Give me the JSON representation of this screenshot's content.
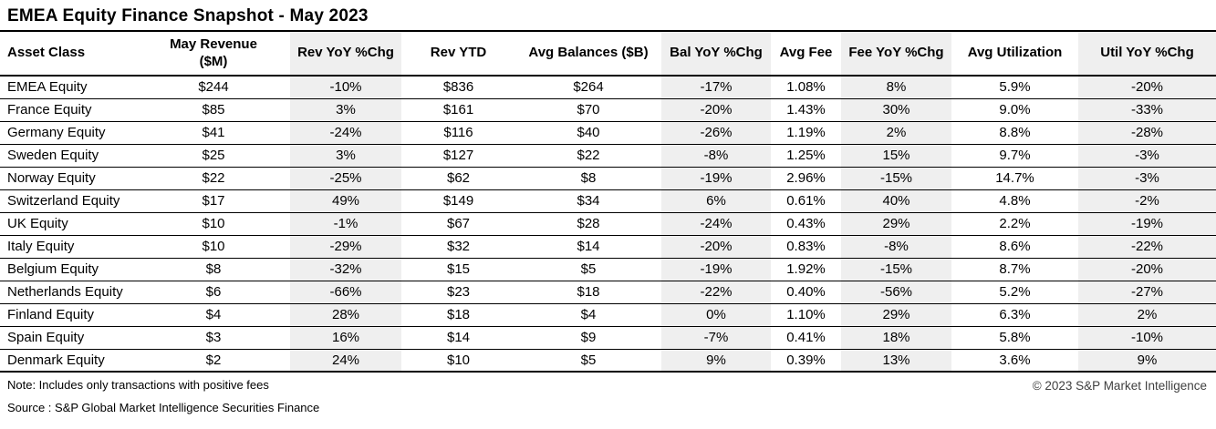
{
  "title": "EMEA Equity Finance Snapshot - May 2023",
  "chart_data": {
    "type": "table",
    "title": "EMEA Equity Finance Snapshot - May 2023",
    "columns": [
      "Asset Class",
      "May Revenue\n($M)",
      "Rev YoY %Chg",
      "Rev YTD",
      "Avg Balances ($B)",
      "Bal YoY %Chg",
      "Avg Fee",
      "Fee YoY %Chg",
      "Avg Utilization",
      "Util YoY %Chg"
    ],
    "banded_column_indexes": [
      2,
      5,
      7,
      9
    ],
    "rows": [
      [
        "EMEA Equity",
        "$244",
        "-10%",
        "$836",
        "$264",
        "-17%",
        "1.08%",
        "8%",
        "5.9%",
        "-20%"
      ],
      [
        "France Equity",
        "$85",
        "3%",
        "$161",
        "$70",
        "-20%",
        "1.43%",
        "30%",
        "9.0%",
        "-33%"
      ],
      [
        "Germany Equity",
        "$41",
        "-24%",
        "$116",
        "$40",
        "-26%",
        "1.19%",
        "2%",
        "8.8%",
        "-28%"
      ],
      [
        "Sweden Equity",
        "$25",
        "3%",
        "$127",
        "$22",
        "-8%",
        "1.25%",
        "15%",
        "9.7%",
        "-3%"
      ],
      [
        "Norway Equity",
        "$22",
        "-25%",
        "$62",
        "$8",
        "-19%",
        "2.96%",
        "-15%",
        "14.7%",
        "-3%"
      ],
      [
        "Switzerland Equity",
        "$17",
        "49%",
        "$149",
        "$34",
        "6%",
        "0.61%",
        "40%",
        "4.8%",
        "-2%"
      ],
      [
        "UK Equity",
        "$10",
        "-1%",
        "$67",
        "$28",
        "-24%",
        "0.43%",
        "29%",
        "2.2%",
        "-19%"
      ],
      [
        "Italy Equity",
        "$10",
        "-29%",
        "$32",
        "$14",
        "-20%",
        "0.83%",
        "-8%",
        "8.6%",
        "-22%"
      ],
      [
        "Belgium Equity",
        "$8",
        "-32%",
        "$15",
        "$5",
        "-19%",
        "1.92%",
        "-15%",
        "8.7%",
        "-20%"
      ],
      [
        "Netherlands Equity",
        "$6",
        "-66%",
        "$23",
        "$18",
        "-22%",
        "0.40%",
        "-56%",
        "5.2%",
        "-27%"
      ],
      [
        "Finland Equity",
        "$4",
        "28%",
        "$18",
        "$4",
        "0%",
        "1.10%",
        "29%",
        "6.3%",
        "2%"
      ],
      [
        "Spain Equity",
        "$3",
        "16%",
        "$14",
        "$9",
        "-7%",
        "0.41%",
        "18%",
        "5.8%",
        "-10%"
      ],
      [
        "Denmark Equity",
        "$2",
        "24%",
        "$10",
        "$5",
        "9%",
        "0.39%",
        "13%",
        "3.6%",
        "9%"
      ]
    ]
  },
  "footer": {
    "note": "Note: Includes only transactions with positive fees",
    "source": "Source : S&P Global Market Intelligence Securities Finance",
    "copyright": "© 2023 S&P Market Intelligence"
  },
  "colors": {
    "band_background": "#efefef",
    "border": "#000000",
    "text": "#000000"
  }
}
